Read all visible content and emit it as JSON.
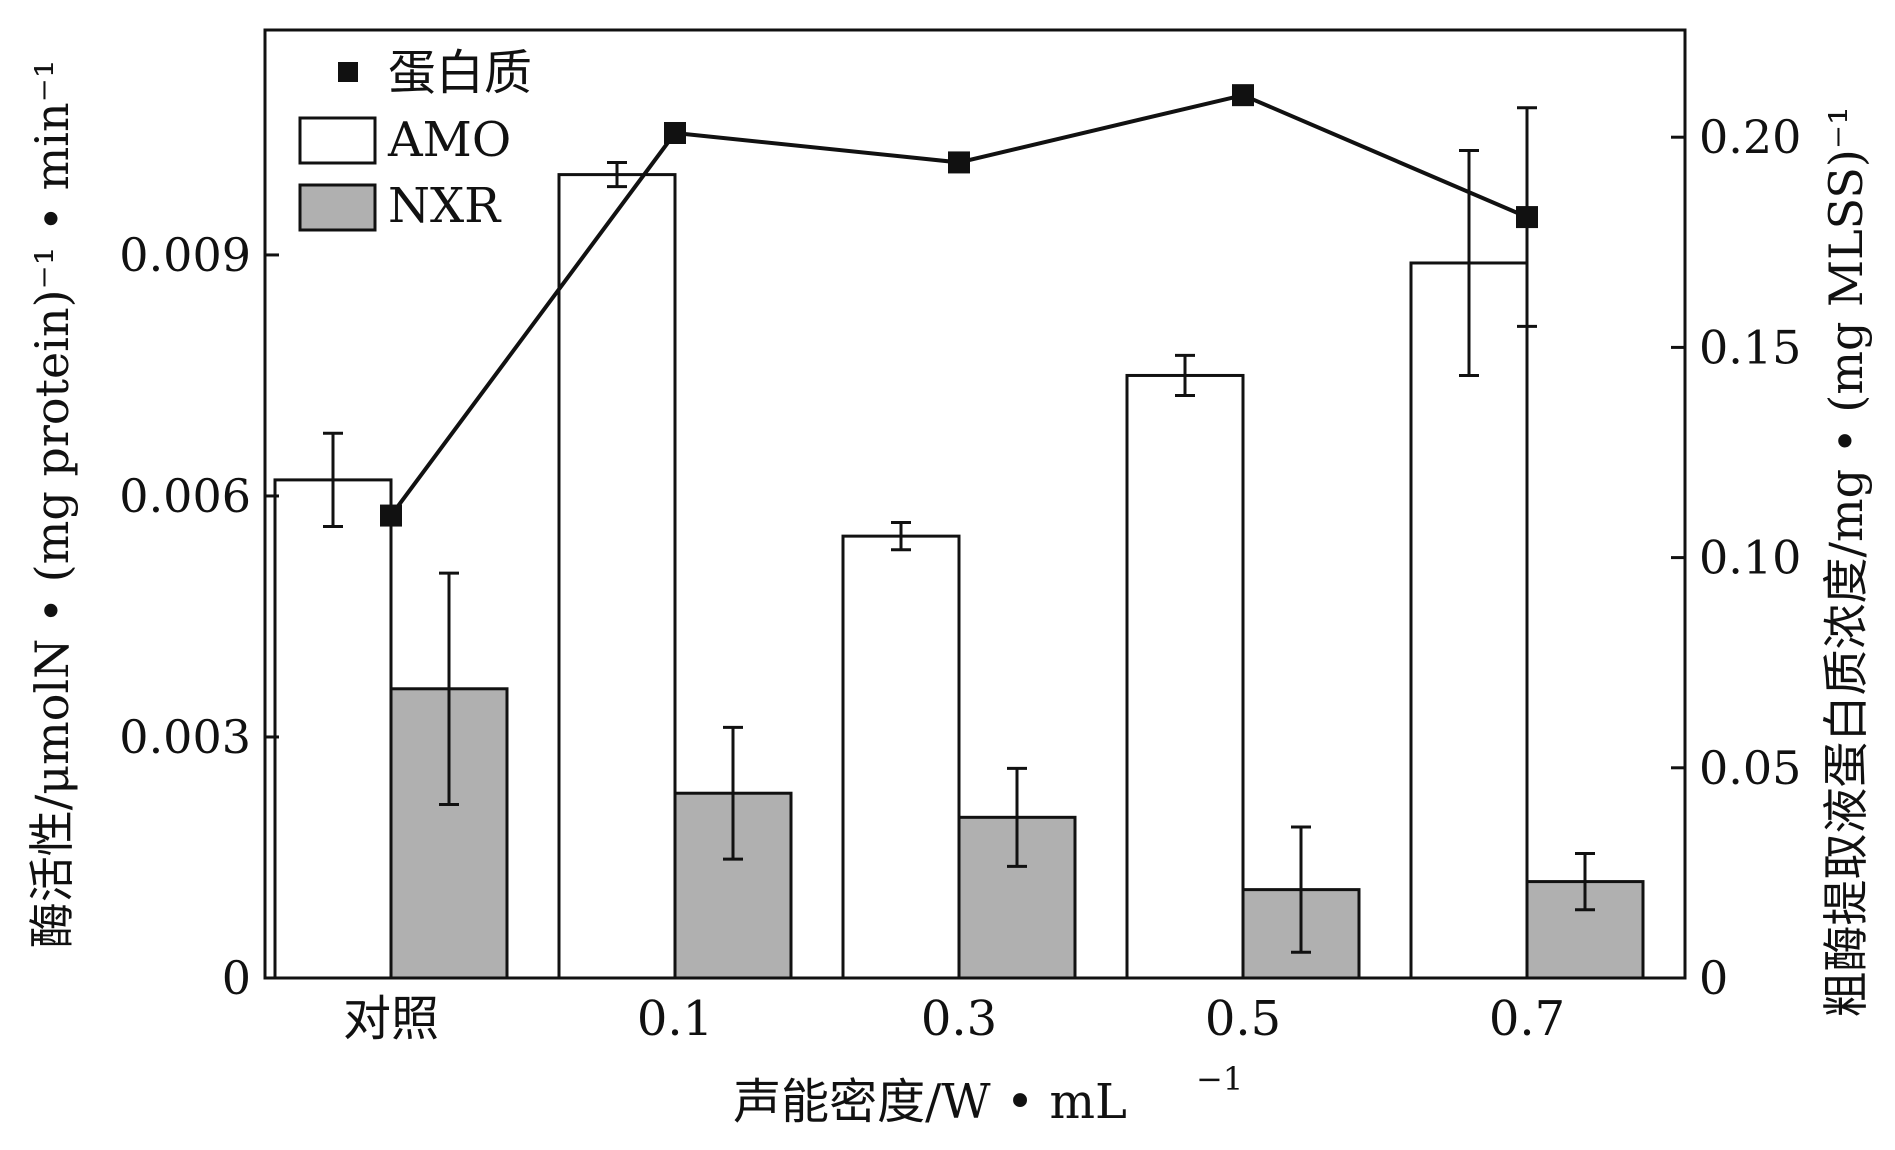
{
  "chart_data": {
    "type": "bar",
    "categories": [
      "对照",
      "0.1",
      "0.3",
      "0.5",
      "0.7"
    ],
    "xlabel_main": "声能密度/W • mL",
    "xlabel_sup": "−1",
    "ylabel_left": "酶活性/μmolN • (mg protein)⁻¹ • min⁻¹",
    "ylabel_right": "粗酶提取液蛋白质浓度/mg • (mg MLSS)⁻¹",
    "ylim_left": [
      0,
      0.0118
    ],
    "ylim_right": [
      0,
      0.2255
    ],
    "yticks_left": [
      "0",
      "0.003",
      "0.006",
      "0.009"
    ],
    "yticks_right": [
      "0",
      "0.05",
      "0.10",
      "0.15",
      "0.20"
    ],
    "legend_position": "top-left",
    "series": [
      {
        "name": "AMO",
        "axis": "left",
        "kind": "bar",
        "color": "#ffffff",
        "values": [
          0.0062,
          0.01,
          0.0055,
          0.0075,
          0.0089
        ],
        "errors": [
          0.00058,
          0.00015,
          0.00017,
          0.00025,
          0.0014
        ]
      },
      {
        "name": "NXR",
        "axis": "left",
        "kind": "bar",
        "color": "#b0b0b0",
        "values": [
          0.0036,
          0.0023,
          0.002,
          0.0011,
          0.0012
        ],
        "errors": [
          0.00144,
          0.00082,
          0.00061,
          0.00078,
          0.00035
        ]
      },
      {
        "name": "蛋白质",
        "axis": "right",
        "kind": "line",
        "color": "#111111",
        "values": [
          0.11,
          0.201,
          0.194,
          0.21,
          0.181
        ],
        "errors": [
          0,
          0,
          0,
          0,
          0.026
        ]
      }
    ]
  }
}
